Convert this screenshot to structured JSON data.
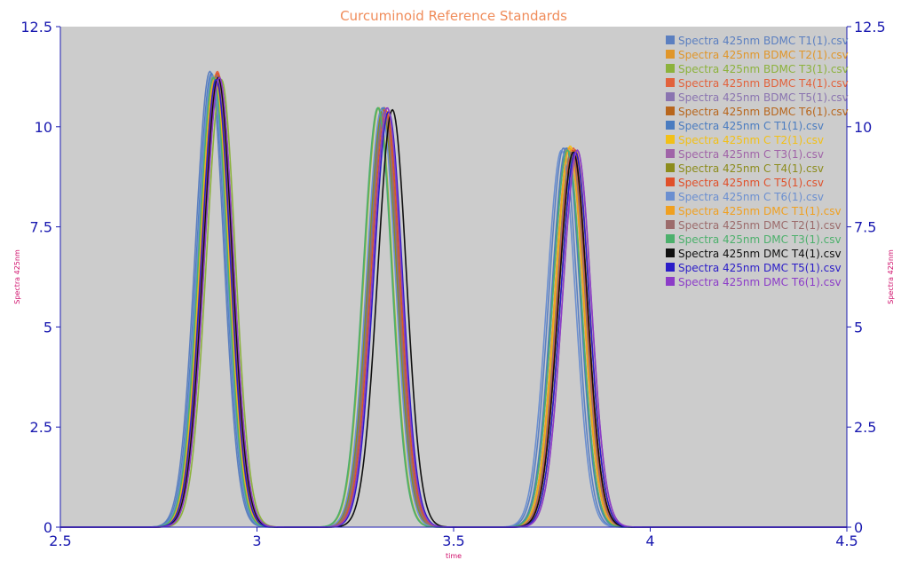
{
  "chart_data": {
    "type": "line",
    "title": "Curcuminoid Reference Standards",
    "xlabel": "time",
    "ylabel_left": "Spectra 425nm",
    "ylabel_right": "Spectra 425nm",
    "xlim": [
      2.5,
      4.5
    ],
    "ylim": [
      0,
      12.5
    ],
    "x_ticks": [
      "2.5",
      "3",
      "3.5",
      "4",
      "4.5"
    ],
    "y_ticks": [
      "0",
      "2.5",
      "5",
      "7.5",
      "10",
      "12.5"
    ],
    "grid": false,
    "legend_position": "top-right",
    "series": [
      {
        "name": "Spectra 425nm BDMC T1(1).csv",
        "color": "#5b7fc0",
        "peaks": [
          [
            2.876,
            11.3
          ],
          [
            3.315,
            10.4
          ],
          [
            3.775,
            9.4
          ]
        ]
      },
      {
        "name": "Spectra 425nm BDMC T2(1).csv",
        "color": "#e0962a",
        "peaks": [
          [
            2.884,
            11.2
          ],
          [
            3.322,
            10.35
          ],
          [
            3.785,
            9.4
          ]
        ]
      },
      {
        "name": "Spectra 425nm BDMC T3(1).csv",
        "color": "#8cb23c",
        "peaks": [
          [
            2.905,
            11.1
          ],
          [
            3.305,
            10.4
          ],
          [
            3.795,
            9.35
          ]
        ]
      },
      {
        "name": "Spectra 425nm BDMC T4(1).csv",
        "color": "#e2623c",
        "peaks": [
          [
            2.895,
            11.3
          ],
          [
            3.32,
            10.4
          ],
          [
            3.8,
            9.4
          ]
        ]
      },
      {
        "name": "Spectra 425nm BDMC T5(1).csv",
        "color": "#8a74b0",
        "peaks": [
          [
            2.89,
            11.2
          ],
          [
            3.318,
            10.35
          ],
          [
            3.79,
            9.4
          ]
        ]
      },
      {
        "name": "Spectra 425nm BDMC T6(1).csv",
        "color": "#b8661c",
        "peaks": [
          [
            2.898,
            11.2
          ],
          [
            3.325,
            10.3
          ],
          [
            3.805,
            9.35
          ]
        ]
      },
      {
        "name": "Spectra 425nm C T1(1).csv",
        "color": "#4a7cc0",
        "peaks": [
          [
            2.88,
            11.25
          ],
          [
            3.318,
            10.4
          ],
          [
            3.782,
            9.4
          ]
        ]
      },
      {
        "name": "Spectra 425nm C T2(1).csv",
        "color": "#f2c017",
        "peaks": [
          [
            2.887,
            11.2
          ],
          [
            3.322,
            10.35
          ],
          [
            3.792,
            9.45
          ]
        ]
      },
      {
        "name": "Spectra 425nm C T3(1).csv",
        "color": "#a064a8",
        "peaks": [
          [
            2.892,
            11.2
          ],
          [
            3.32,
            10.3
          ],
          [
            3.81,
            9.35
          ]
        ]
      },
      {
        "name": "Spectra 425nm C T4(1).csv",
        "color": "#8c8c1c",
        "peaks": [
          [
            2.9,
            11.15
          ],
          [
            3.315,
            10.35
          ],
          [
            3.8,
            9.3
          ]
        ]
      },
      {
        "name": "Spectra 425nm C T5(1).csv",
        "color": "#e0502a",
        "peaks": [
          [
            2.895,
            11.25
          ],
          [
            3.322,
            10.35
          ],
          [
            3.798,
            9.35
          ]
        ]
      },
      {
        "name": "Spectra 425nm C T6(1).csv",
        "color": "#6b8fd0",
        "peaks": [
          [
            2.882,
            11.2
          ],
          [
            3.312,
            10.35
          ],
          [
            3.77,
            9.35
          ]
        ]
      },
      {
        "name": "Spectra 425nm DMC T1(1).csv",
        "color": "#f0a020",
        "peaks": [
          [
            2.89,
            11.15
          ],
          [
            3.328,
            10.3
          ],
          [
            3.79,
            9.4
          ]
        ]
      },
      {
        "name": "Spectra 425nm DMC T2(1).csv",
        "color": "#9c6c6c",
        "peaks": [
          [
            2.893,
            11.2
          ],
          [
            3.32,
            10.3
          ],
          [
            3.795,
            9.3
          ]
        ]
      },
      {
        "name": "Spectra 425nm DMC T3(1).csv",
        "color": "#4cb06c",
        "peaks": [
          [
            2.885,
            11.15
          ],
          [
            3.303,
            10.4
          ],
          [
            3.785,
            9.35
          ]
        ]
      },
      {
        "name": "Spectra 425nm DMC T4(1).csv",
        "color": "#101010",
        "peaks": [
          [
            2.897,
            11.15
          ],
          [
            3.34,
            10.35
          ],
          [
            3.8,
            9.3
          ]
        ]
      },
      {
        "name": "Spectra 425nm DMC T5(1).csv",
        "color": "#2a1cc8",
        "peaks": [
          [
            2.892,
            11.1
          ],
          [
            3.33,
            10.3
          ],
          [
            3.805,
            9.3
          ]
        ]
      },
      {
        "name": "Spectra 425nm DMC T6(1).csv",
        "color": "#8c3cc8",
        "peaks": [
          [
            2.9,
            11.15
          ],
          [
            3.327,
            10.4
          ],
          [
            3.81,
            9.35
          ]
        ]
      }
    ]
  },
  "colors": {
    "title": "#f08c5a",
    "tick_text": "#1a1ab0",
    "axis_label": "#d0106c",
    "plot_background": "#cccccc",
    "axis_line": "#1a1ab0"
  }
}
